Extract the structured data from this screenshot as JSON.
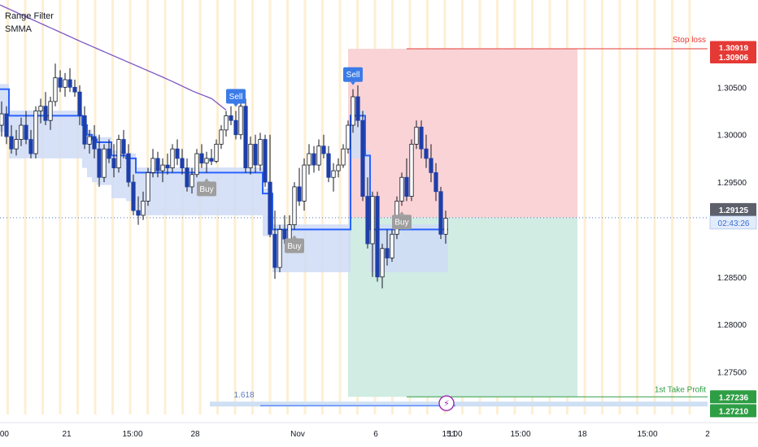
{
  "indicators": [
    "Range Filter",
    "SMMA"
  ],
  "colors": {
    "bull": "#ffffff",
    "bear": "#1e3fa8",
    "wick": "#131722",
    "filter": "#2962ff",
    "band": "#cfdcf6",
    "smma": "#7e57c2",
    "risk_zone": "#f9d3d6",
    "reward_zone": "#d0ece3",
    "stop": "#e53935",
    "take": "#2e9e44",
    "session": "#fde9c4",
    "sell_tag": "#3b7be8",
    "buy_tag": "#9e9e9e",
    "alert": "#9c27b0"
  },
  "chart_data": {
    "type": "candlestick",
    "title": "",
    "ylim": [
      1.2705,
      1.3142
    ],
    "y_ticks": [
      "1.30500",
      "1.30000",
      "1.29500",
      "1.28500",
      "1.28000",
      "1.27500"
    ],
    "x_ticks": [
      ":00",
      "21",
      "15:00",
      "28",
      "Nov",
      "6",
      "15:00",
      "11",
      "15:00",
      "18",
      "15:00",
      "2"
    ],
    "candles": [
      [
        1.301,
        1.3035,
        1.2998,
        1.3022
      ],
      [
        1.3022,
        1.303,
        1.299,
        1.2998
      ],
      [
        1.2998,
        1.301,
        1.298,
        1.2985
      ],
      [
        1.2985,
        1.3005,
        1.2978,
        1.2995
      ],
      [
        1.2995,
        1.3018,
        1.2988,
        1.301
      ],
      [
        1.301,
        1.3025,
        1.299,
        1.2995
      ],
      [
        1.2995,
        1.3005,
        1.2975,
        1.298
      ],
      [
        1.298,
        1.303,
        1.2975,
        1.3025
      ],
      [
        1.3025,
        1.3038,
        1.3012,
        1.303
      ],
      [
        1.303,
        1.3045,
        1.301,
        1.3015
      ],
      [
        1.3015,
        1.304,
        1.3005,
        1.3035
      ],
      [
        1.3035,
        1.3075,
        1.303,
        1.306
      ],
      [
        1.306,
        1.3068,
        1.3045,
        1.305
      ],
      [
        1.305,
        1.3065,
        1.304,
        1.3058
      ],
      [
        1.3058,
        1.307,
        1.3045,
        1.305
      ],
      [
        1.305,
        1.3058,
        1.304,
        1.3045
      ],
      [
        1.3045,
        1.3052,
        1.301,
        1.302
      ],
      [
        1.302,
        1.303,
        1.2985,
        1.299
      ],
      [
        1.299,
        1.3005,
        1.298,
        1.2998
      ],
      [
        1.2998,
        1.301,
        1.2975,
        1.2985
      ],
      [
        1.2985,
        1.3,
        1.2945,
        1.2955
      ],
      [
        1.2955,
        1.299,
        1.295,
        1.2985
      ],
      [
        1.2985,
        1.2995,
        1.297,
        1.2975
      ],
      [
        1.2975,
        1.299,
        1.2955,
        1.2965
      ],
      [
        1.2965,
        1.3,
        1.296,
        1.2995
      ],
      [
        1.2995,
        1.3005,
        1.2975,
        1.298
      ],
      [
        1.298,
        1.299,
        1.2945,
        1.295
      ],
      [
        1.295,
        1.2958,
        1.2915,
        1.292
      ],
      [
        1.292,
        1.2935,
        1.2905,
        1.2915
      ],
      [
        1.2915,
        1.294,
        1.291,
        1.293
      ],
      [
        1.293,
        1.2965,
        1.2925,
        1.296
      ],
      [
        1.296,
        1.2985,
        1.2955,
        1.2975
      ],
      [
        1.2975,
        1.2982,
        1.2955,
        1.2962
      ],
      [
        1.2962,
        1.2975,
        1.295,
        1.2968
      ],
      [
        1.2968,
        1.298,
        1.2958,
        1.2965
      ],
      [
        1.2965,
        1.299,
        1.296,
        1.2985
      ],
      [
        1.2985,
        1.2995,
        1.2968,
        1.2975
      ],
      [
        1.2975,
        1.2985,
        1.2958,
        1.2965
      ],
      [
        1.2965,
        1.2975,
        1.294,
        1.2945
      ],
      [
        1.2945,
        1.2965,
        1.2938,
        1.2958
      ],
      [
        1.2958,
        1.2985,
        1.2955,
        1.298
      ],
      [
        1.298,
        1.299,
        1.2965,
        1.297
      ],
      [
        1.297,
        1.2982,
        1.296,
        1.2975
      ],
      [
        1.2975,
        1.2985,
        1.2968,
        1.2972
      ],
      [
        1.2972,
        1.2995,
        1.297,
        1.299
      ],
      [
        1.299,
        1.301,
        1.2985,
        1.3005
      ],
      [
        1.3005,
        1.3025,
        1.2998,
        1.302
      ],
      [
        1.302,
        1.303,
        1.301,
        1.3015
      ],
      [
        1.3015,
        1.3025,
        1.2995,
        1.3
      ],
      [
        1.3,
        1.304,
        1.2995,
        1.303
      ],
      [
        1.303,
        1.3038,
        1.296,
        1.2965
      ],
      [
        1.2965,
        1.2998,
        1.2958,
        1.299
      ],
      [
        1.299,
        1.3,
        1.296,
        1.2968
      ],
      [
        1.2968,
        1.3002,
        1.2962,
        1.2995
      ],
      [
        1.2995,
        1.3,
        1.2945,
        1.295
      ],
      [
        1.295,
        1.3,
        1.2892,
        1.2895
      ],
      [
        1.2895,
        1.292,
        1.2848,
        1.286
      ],
      [
        1.286,
        1.2905,
        1.2855,
        1.29
      ],
      [
        1.29,
        1.2915,
        1.2885,
        1.289
      ],
      [
        1.289,
        1.2915,
        1.288,
        1.2905
      ],
      [
        1.2905,
        1.295,
        1.29,
        1.2945
      ],
      [
        1.2945,
        1.2965,
        1.2925,
        1.293
      ],
      [
        1.293,
        1.2975,
        1.292,
        1.2968
      ],
      [
        1.2968,
        1.299,
        1.2958,
        1.298
      ],
      [
        1.298,
        1.2988,
        1.296,
        1.2968
      ],
      [
        1.2968,
        1.2995,
        1.2962,
        1.2988
      ],
      [
        1.2988,
        1.3,
        1.2975,
        1.298
      ],
      [
        1.298,
        1.2988,
        1.295,
        1.2955
      ],
      [
        1.2955,
        1.297,
        1.294,
        1.2962
      ],
      [
        1.2962,
        1.2975,
        1.2955,
        1.2968
      ],
      [
        1.2968,
        1.299,
        1.2965,
        1.2985
      ],
      [
        1.2985,
        1.3015,
        1.298,
        1.301
      ],
      [
        1.301,
        1.3048,
        1.3002,
        1.304
      ],
      [
        1.304,
        1.3052,
        1.3008,
        1.3015
      ],
      [
        1.3015,
        1.3025,
        1.293,
        1.2935
      ],
      [
        1.2935,
        1.2955,
        1.288,
        1.2885
      ],
      [
        1.2885,
        1.294,
        1.285,
        1.2935
      ],
      [
        1.2935,
        1.294,
        1.2845,
        1.285
      ],
      [
        1.285,
        1.2885,
        1.2838,
        1.288
      ],
      [
        1.288,
        1.29,
        1.2862,
        1.287
      ],
      [
        1.287,
        1.29,
        1.2866,
        1.2895
      ],
      [
        1.2895,
        1.2935,
        1.289,
        1.293
      ],
      [
        1.293,
        1.296,
        1.2925,
        1.2955
      ],
      [
        1.2955,
        1.2975,
        1.293,
        1.2935
      ],
      [
        1.2935,
        1.2995,
        1.293,
        1.299
      ],
      [
        1.299,
        1.3015,
        1.2985,
        1.3008
      ],
      [
        1.3008,
        1.3015,
        1.2975,
        1.2985
      ],
      [
        1.2985,
        1.3,
        1.2965,
        1.2975
      ],
      [
        1.2975,
        1.299,
        1.295,
        1.296
      ],
      [
        1.296,
        1.297,
        1.293,
        1.294
      ],
      [
        1.294,
        1.2945,
        1.289,
        1.2895
      ],
      [
        1.2895,
        1.292,
        1.2885,
        1.2912
      ]
    ],
    "smma": [
      1.31368,
      1.31345,
      1.31322,
      1.31299,
      1.31276,
      1.31253,
      1.3123,
      1.31207,
      1.31184,
      1.31161,
      1.31138,
      1.31115,
      1.31092,
      1.31069,
      1.31046,
      1.31023,
      1.31,
      1.30977,
      1.30955,
      1.30933,
      1.30911,
      1.30889,
      1.30867,
      1.30845,
      1.30823,
      1.30801,
      1.30779,
      1.30757,
      1.30735,
      1.30713,
      1.30691,
      1.30669,
      1.30647,
      1.30625,
      1.30603,
      1.3058,
      1.30557,
      1.30533,
      1.30509,
      1.30485,
      1.30461,
      1.3044,
      1.3042,
      1.304,
      1.3038,
      1.3034,
      1.303,
      1.3026
    ],
    "smma_last_index": 46,
    "range_filter": [
      1.3048,
      1.3048,
      1.302,
      1.302,
      1.302,
      1.302,
      1.302,
      1.302,
      1.302,
      1.302,
      1.302,
      1.302,
      1.302,
      1.302,
      1.302,
      1.302,
      1.302,
      1.301,
      1.3,
      1.2995,
      1.2992,
      1.2992,
      1.2992,
      1.2978,
      1.2978,
      1.2978,
      1.2975,
      1.2975,
      1.296,
      1.296,
      1.296,
      1.296,
      1.296,
      1.296,
      1.296,
      1.296,
      1.296,
      1.296,
      1.296,
      1.296,
      1.296,
      1.296,
      1.296,
      1.296,
      1.296,
      1.296,
      1.296,
      1.296,
      1.296,
      1.296,
      1.296,
      1.296,
      1.296,
      1.296,
      1.2938,
      1.2938,
      1.29,
      1.29,
      1.29,
      1.29,
      1.29,
      1.29,
      1.29,
      1.29,
      1.29,
      1.29,
      1.29,
      1.29,
      1.29,
      1.29,
      1.29,
      1.29,
      1.302,
      1.302,
      1.302,
      1.2978,
      1.29,
      1.29,
      1.29,
      1.29,
      1.29,
      1.29,
      1.29,
      1.29,
      1.29,
      1.29,
      1.29,
      1.29,
      1.29,
      1.29,
      1.29,
      1.29
    ],
    "range_filter_band": 0.0045,
    "signals": [
      {
        "label": "Sell",
        "type": "sell",
        "index": 48
      },
      {
        "label": "Sell",
        "type": "sell",
        "index": 72
      },
      {
        "label": "Buy",
        "type": "buy",
        "index": 42
      },
      {
        "label": "Buy",
        "type": "buy",
        "index": 60
      },
      {
        "label": "Buy",
        "type": "buy",
        "index": 82
      }
    ],
    "position": {
      "entry": 1.29125,
      "stop": 1.30906,
      "target": 1.27236,
      "start_index": 71,
      "end_index": 118
    },
    "fib_label": "1.618",
    "fib_price": 1.2716,
    "alert_glyph": "⚡"
  },
  "price_scale": {
    "stop_label": "Stop loss",
    "stop_price": "1.30906",
    "stop_price_top": "1.30919",
    "stop_level_top": 1.30919,
    "current_price": "1.29125",
    "countdown": "02:43:26",
    "take_label": "1st Take Profit",
    "take_price": "1.27236",
    "take_price_low": "1.27210",
    "take_level_low": 1.2721
  }
}
